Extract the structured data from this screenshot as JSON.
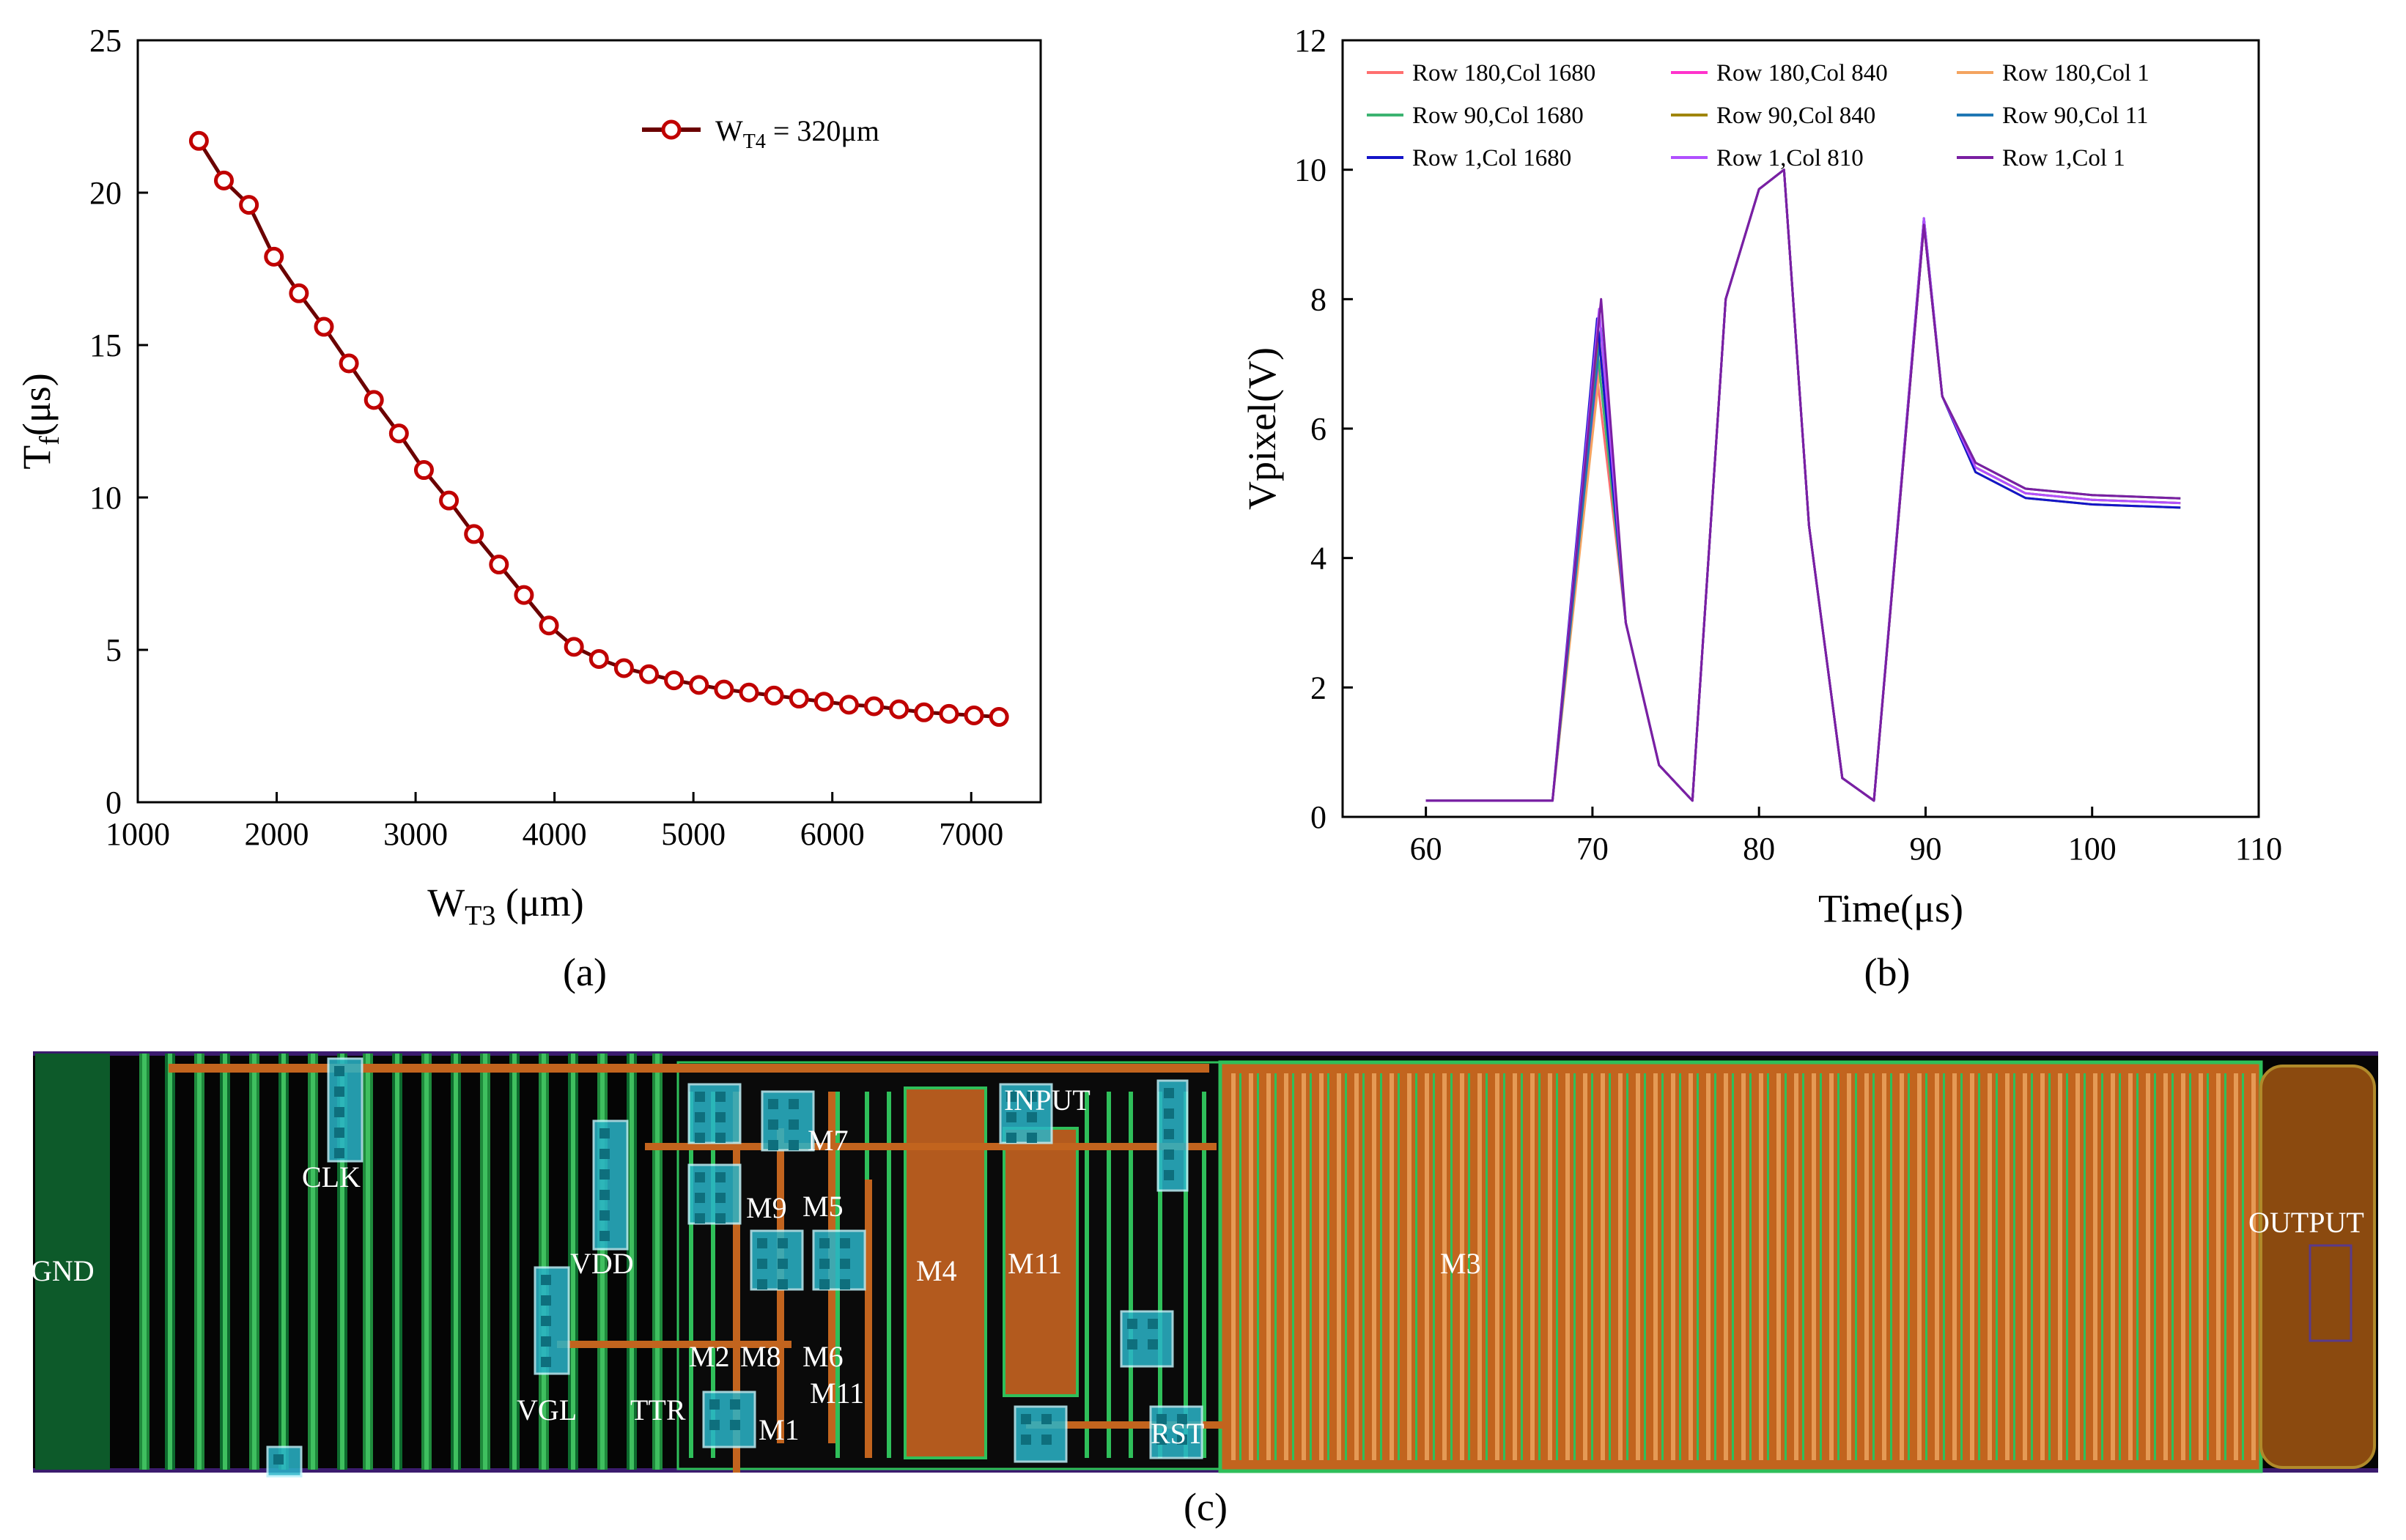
{
  "chart_data": [
    {
      "type": "line",
      "panel": "(a)",
      "xlabel_main": "W",
      "xlabel_sub": "T3",
      "xlabel_unit": " (μm)",
      "ylabel_main": "T",
      "ylabel_sub": "f",
      "ylabel_unit": "(μs)",
      "xlim": [
        1000,
        7500
      ],
      "ylim": [
        0,
        25
      ],
      "xticks": [
        1000,
        2000,
        3000,
        4000,
        5000,
        6000,
        7000
      ],
      "yticks": [
        0,
        5,
        10,
        15,
        20,
        25
      ],
      "legend_main": "W",
      "legend_sub": "T4",
      "legend_rest": " = 320μm",
      "legend_position": "top-right",
      "series": [
        {
          "name": "WT4 = 320μm",
          "color": "#c00000",
          "line_color": "#6b0000",
          "x": [
            1440,
            1620,
            1800,
            1980,
            2160,
            2340,
            2520,
            2700,
            2880,
            3060,
            3240,
            3420,
            3600,
            3780,
            3960,
            4140,
            4320,
            4500,
            4680,
            4860,
            5040,
            5220,
            5400,
            5580,
            5760,
            5940,
            6120,
            6300,
            6480,
            6660,
            6840,
            7020,
            7200
          ],
          "y": [
            21.7,
            20.4,
            19.6,
            17.9,
            16.7,
            15.6,
            14.4,
            13.2,
            12.1,
            10.9,
            9.9,
            8.8,
            7.8,
            6.8,
            5.8,
            5.1,
            4.7,
            4.4,
            4.2,
            4.0,
            3.85,
            3.7,
            3.6,
            3.5,
            3.4,
            3.3,
            3.2,
            3.15,
            3.05,
            2.95,
            2.9,
            2.85,
            2.8
          ]
        }
      ]
    },
    {
      "type": "line",
      "panel": "(b)",
      "xlabel": "Time(μs)",
      "ylabel": "Vpixel(V)",
      "xlim": [
        55,
        110
      ],
      "ylim": [
        0,
        12
      ],
      "xticks": [
        60,
        70,
        80,
        90,
        100,
        110
      ],
      "yticks": [
        0,
        2,
        4,
        6,
        8,
        10,
        12
      ],
      "legend_position": "top",
      "series": [
        {
          "name": "Row  180,Col 1680",
          "color": "#ff6f6f"
        },
        {
          "name": "Row  180,Col 840",
          "color": "#ff33cc"
        },
        {
          "name": "Row  180,Col 1",
          "color": "#f4a460"
        },
        {
          "name": "Row  90,Col 1680",
          "color": "#3cb371"
        },
        {
          "name": "Row  90,Col 840",
          "color": "#a0860a"
        },
        {
          "name": "Row  90,Col 11",
          "color": "#1f77b4"
        },
        {
          "name": "Row  1,Col 1680",
          "color": "#1414c8"
        },
        {
          "name": "Row  1,Col 810",
          "color": "#b050ff"
        },
        {
          "name": "Row  1,Col 1",
          "color": "#7a1fa2"
        }
      ],
      "waveform_keypoints": {
        "time": [
          60,
          67.6,
          70.4,
          72,
          74,
          76,
          78,
          80,
          81.5,
          83,
          85,
          86.9,
          89.9,
          91,
          93,
          96,
          100,
          105.3
        ],
        "value": [
          0.25,
          0.25,
          7.4,
          3.0,
          0.8,
          0.25,
          8.0,
          9.7,
          10.0,
          4.5,
          0.6,
          0.25,
          9.2,
          6.5,
          5.4,
          5.0,
          4.9,
          4.85
        ]
      }
    }
  ],
  "layout": {
    "panel": "(c)",
    "labels": [
      "GND",
      "CLK",
      "VDD",
      "VGL",
      "TTR",
      "M1",
      "M2",
      "M8",
      "M6",
      "M11",
      "M9",
      "M5",
      "M7",
      "M4",
      "INPUT",
      "M11",
      "RST",
      "M3",
      "OUTPUT"
    ]
  }
}
